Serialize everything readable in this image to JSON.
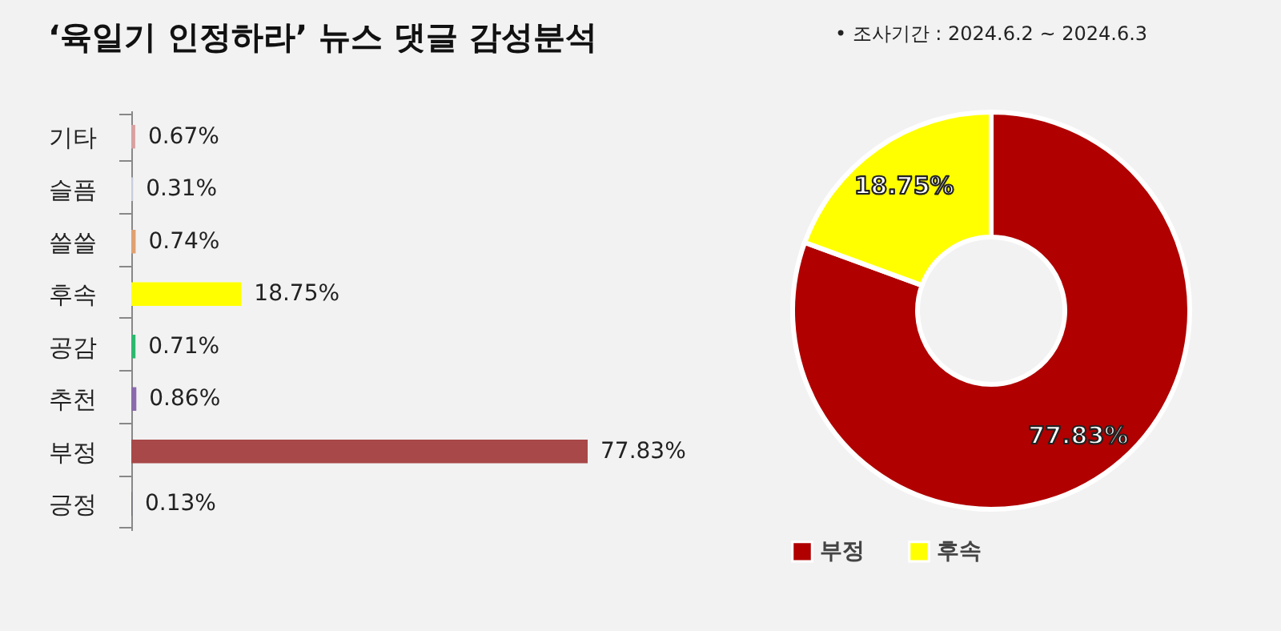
{
  "chart_data": [
    {
      "type": "bar",
      "orientation": "horizontal",
      "title": "‘육일기 인정하라’ 뉴스 댓글 감성분석",
      "categories": [
        "기타",
        "슬픔",
        "쓸쓸",
        "후속",
        "공감",
        "추천",
        "부정",
        "긍정"
      ],
      "values": [
        0.67,
        0.31,
        0.74,
        18.75,
        0.71,
        0.86,
        77.83,
        0.13
      ],
      "colors": [
        "#d9a0a0",
        "#c8cce0",
        "#e0a070",
        "#ffff00",
        "#2eb86e",
        "#8a6aac",
        "#a84848",
        "#6070a0"
      ],
      "value_labels": [
        "0.67%",
        "0.31%",
        "0.74%",
        "18.75%",
        "0.71%",
        "0.86%",
        "77.83%",
        "0.13%"
      ]
    },
    {
      "type": "donut",
      "annotations": [
        "•    조사기간 : 2024.6.2 ~ 2024.6.3"
      ],
      "categories": [
        "부정",
        "후속"
      ],
      "values": [
        77.83,
        18.75
      ],
      "colors": [
        "#b00000",
        "#ffff00"
      ],
      "value_labels": [
        "77.83%",
        "18.75%"
      ],
      "legend": "bottom"
    }
  ]
}
